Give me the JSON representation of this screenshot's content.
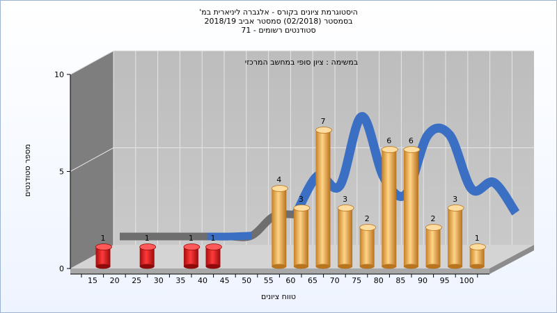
{
  "titles": {
    "line1": "היסטוגרמת ציונים בקורס - אלגברה ליניארית במ'",
    "line2": "בסמסטר  (02/2018)  סמסטר אביב 2018/19",
    "line3": "סטודנטים רשומים - 71"
  },
  "chart_data": {
    "type": "bar",
    "title": "במשימה : ציון סופי במחשב המרכזי",
    "xlabel": "טווח ציונים",
    "ylabel": "מספר סטודנטים",
    "categories": [
      "15",
      "20",
      "25",
      "30",
      "35",
      "40",
      "45",
      "50",
      "55",
      "60",
      "65",
      "70",
      "75",
      "80",
      "85",
      "90",
      "95",
      "100"
    ],
    "y_ticks": [
      "0",
      "5",
      "10"
    ],
    "ylim": [
      0,
      10
    ],
    "bars": [
      {
        "x": "15",
        "value": 1,
        "color": "red"
      },
      {
        "x": "25",
        "value": 1,
        "color": "red"
      },
      {
        "x": "35",
        "value": 1,
        "color": "red"
      },
      {
        "x": "40",
        "value": 1,
        "color": "red"
      },
      {
        "x": "55",
        "value": 4,
        "color": "orange"
      },
      {
        "x": "60",
        "value": 3,
        "color": "orange"
      },
      {
        "x": "65",
        "value": 7,
        "color": "orange"
      },
      {
        "x": "70",
        "value": 3,
        "color": "orange"
      },
      {
        "x": "75",
        "value": 2,
        "color": "orange"
      },
      {
        "x": "80",
        "value": 6,
        "color": "orange"
      },
      {
        "x": "85",
        "value": 6,
        "color": "orange"
      },
      {
        "x": "90",
        "value": 2,
        "color": "orange"
      },
      {
        "x": "95",
        "value": 3,
        "color": "orange"
      },
      {
        "x": "100",
        "value": 1,
        "color": "orange"
      }
    ],
    "curve": [
      {
        "x": "15",
        "value": 0.0
      },
      {
        "x": "20",
        "value": 0.0
      },
      {
        "x": "25",
        "value": 0.0
      },
      {
        "x": "30",
        "value": 0.0
      },
      {
        "x": "35",
        "value": 0.0
      },
      {
        "x": "40",
        "value": 0.0
      },
      {
        "x": "45",
        "value": 0.05
      },
      {
        "x": "50",
        "value": 1.2
      },
      {
        "x": "55",
        "value": 1.3
      },
      {
        "x": "60",
        "value": 3.6
      },
      {
        "x": "65",
        "value": 3.0
      },
      {
        "x": "70",
        "value": 7.1
      },
      {
        "x": "75",
        "value": 3.5
      },
      {
        "x": "80",
        "value": 2.5
      },
      {
        "x": "85",
        "value": 6.0
      },
      {
        "x": "90",
        "value": 6.0
      },
      {
        "x": "95",
        "value": 2.8
      },
      {
        "x": "100",
        "value": 3.2
      },
      {
        "x": "105",
        "value": 1.4
      }
    ],
    "colors": {
      "red": "#e21b1b",
      "red_dark": "#8f0a0a",
      "orange": "#f0b04a",
      "orange_dark": "#b8741e",
      "curve_blue": "#3a6fc4",
      "curve_gray": "#6e6e6e",
      "back_wall": "#c0c0c0",
      "side_wall": "#808080",
      "floor": "#d6d6d6"
    }
  }
}
